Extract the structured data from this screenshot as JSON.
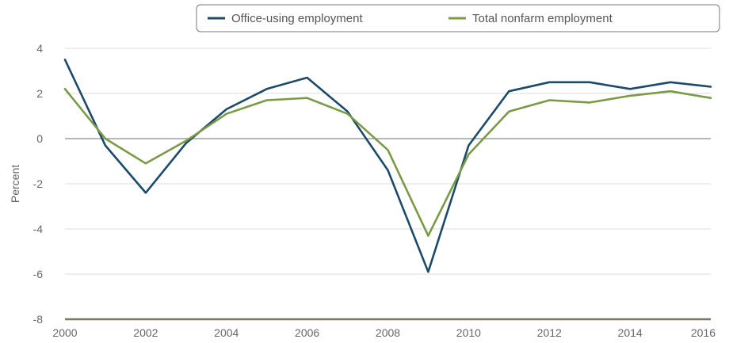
{
  "chart_data": {
    "type": "line",
    "title": "",
    "xlabel": "",
    "ylabel": "Percent",
    "x": [
      "2000",
      "2001",
      "2002",
      "2003",
      "2004",
      "2005",
      "2006",
      "2007",
      "2008",
      "2009",
      "2010",
      "2011",
      "2012",
      "2013",
      "2014",
      "2015",
      "2016"
    ],
    "x_tick_labels": [
      "2000",
      "2002",
      "2004",
      "2006",
      "2008",
      "2010",
      "2012",
      "2014",
      "2016"
    ],
    "y_tick_labels": [
      "4",
      "2",
      "0",
      "-2",
      "-4",
      "-6",
      "-8"
    ],
    "ylim": [
      -8,
      4
    ],
    "grid": true,
    "legend_placement": "top-right",
    "series": [
      {
        "name": "Office-using employment",
        "color": "#1b4a6b",
        "values": [
          3.5,
          -0.3,
          -2.4,
          -0.2,
          1.3,
          2.2,
          2.7,
          1.2,
          -1.4,
          -5.9,
          -0.3,
          2.1,
          2.5,
          2.5,
          2.2,
          2.5,
          2.3
        ]
      },
      {
        "name": "Total nonfarm employment",
        "color": "#7a9a46",
        "values": [
          2.2,
          0.0,
          -1.1,
          -0.1,
          1.1,
          1.7,
          1.8,
          1.1,
          -0.5,
          -4.3,
          -0.7,
          1.2,
          1.7,
          1.6,
          1.9,
          2.1,
          1.8
        ]
      }
    ]
  }
}
